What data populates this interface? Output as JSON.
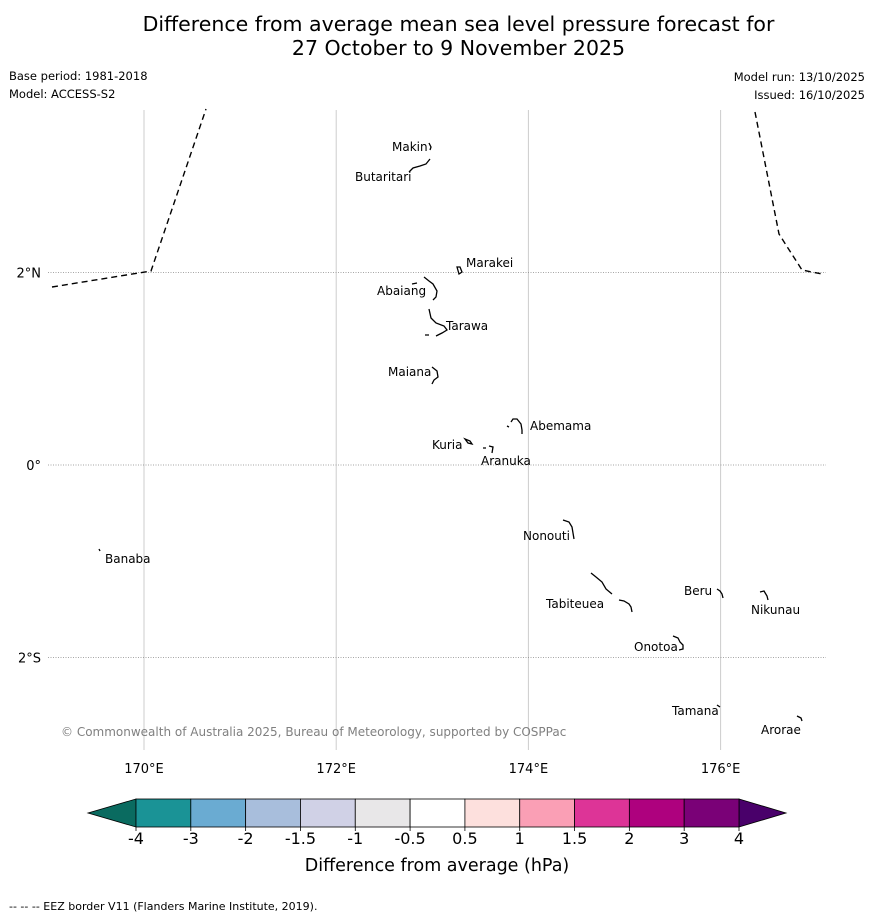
{
  "title_line1": "Difference from average mean sea level pressure forecast for",
  "title_line2": "27 October to 9 November 2025",
  "base_period": "Base period: 1981-2018",
  "model": "Model: ACCESS-S2",
  "model_run": "Model run: 13/10/2025",
  "issued": "Issued: 16/10/2025",
  "copyright": "© Commonwealth of Australia 2025, Bureau of Meteorology, supported by COSPPac",
  "footer_note": "--  --  -- EEZ border V11 (Flanders Marine Institute, 2019).",
  "map": {
    "lon_ticks": [
      "170°E",
      "172°E",
      "174°E",
      "176°E"
    ],
    "lat_ticks": [
      "2°N",
      "0°",
      "2°S"
    ],
    "lon_tick_values": [
      170,
      172,
      174,
      176
    ],
    "lat_tick_values": [
      2,
      0,
      -2
    ],
    "lon_range": [
      169,
      177
    ],
    "lat_range": [
      -3,
      3.5
    ],
    "islands": [
      {
        "name": "Makin",
        "lon": 172.95,
        "lat": 3.2
      },
      {
        "name": "Butaritari",
        "lon": 172.85,
        "lat": 3.02
      },
      {
        "name": "Marakei",
        "lon": 173.3,
        "lat": 1.98
      },
      {
        "name": "Abaiang",
        "lon": 172.99,
        "lat": 1.83
      },
      {
        "name": "Tarawa",
        "lon": 173.05,
        "lat": 1.43
      },
      {
        "name": "Maiana",
        "lon": 173.02,
        "lat": 0.93
      },
      {
        "name": "Abemama",
        "lon": 173.88,
        "lat": 0.4
      },
      {
        "name": "Kuria",
        "lon": 173.4,
        "lat": 0.23
      },
      {
        "name": "Aranuka",
        "lon": 173.61,
        "lat": 0.17
      },
      {
        "name": "Nonouti",
        "lon": 174.42,
        "lat": -0.66
      },
      {
        "name": "Banaba",
        "lon": 169.53,
        "lat": -0.86
      },
      {
        "name": "Tabiteuea",
        "lon": 174.85,
        "lat": -1.35
      },
      {
        "name": "Beru",
        "lon": 176.0,
        "lat": -1.33
      },
      {
        "name": "Nikunau",
        "lon": 176.45,
        "lat": -1.37
      },
      {
        "name": "Onotoa",
        "lon": 175.55,
        "lat": -1.84
      },
      {
        "name": "Tamana",
        "lon": 175.98,
        "lat": -2.5
      },
      {
        "name": "Arorae",
        "lon": 176.8,
        "lat": -2.64
      }
    ]
  },
  "legend": {
    "label": "Difference from average (hPa)",
    "tick_labels": [
      "-4",
      "-3",
      "-2",
      "-1.5",
      "-1",
      "-0.5",
      "0.5",
      "1",
      "1.5",
      "2",
      "3",
      "4"
    ],
    "colors": [
      "#1a9396",
      "#6aabd2",
      "#a8bedc",
      "#d0d1e6",
      "#e8e7e8",
      "#ffffff",
      "#fde0dd",
      "#fa9fb5",
      "#dd3497",
      "#ae017e",
      "#7a0177"
    ],
    "under_color": "#0a6b60",
    "over_color": "#49006a"
  }
}
